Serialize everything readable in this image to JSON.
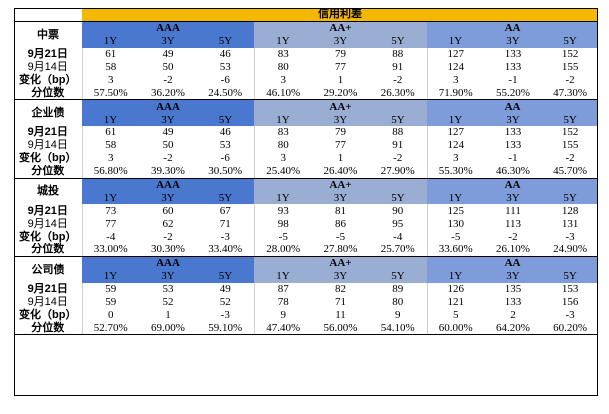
{
  "title": "信用利差",
  "ratings": [
    "AAA",
    "AA+",
    "AA"
  ],
  "tenors": [
    "1Y",
    "3Y",
    "5Y"
  ],
  "blocks": [
    {
      "name": "中票",
      "rows": [
        {
          "label": "9月21日",
          "values": [
            "61",
            "49",
            "46",
            "83",
            "79",
            "88",
            "127",
            "133",
            "152"
          ]
        },
        {
          "label": "9月14日",
          "values": [
            "58",
            "50",
            "53",
            "80",
            "77",
            "91",
            "124",
            "133",
            "155"
          ]
        },
        {
          "label": "变化（bp）",
          "values": [
            "3",
            "-2",
            "-6",
            "3",
            "1",
            "-2",
            "3",
            "-1",
            "-2"
          ]
        },
        {
          "label": "分位数",
          "values": [
            "57.50%",
            "36.20%",
            "24.50%",
            "46.10%",
            "29.20%",
            "26.30%",
            "71.90%",
            "55.20%",
            "47.30%"
          ]
        }
      ]
    },
    {
      "name": "企业债",
      "rows": [
        {
          "label": "9月21日",
          "values": [
            "61",
            "49",
            "46",
            "83",
            "79",
            "88",
            "127",
            "133",
            "152"
          ]
        },
        {
          "label": "9月14日",
          "values": [
            "58",
            "50",
            "53",
            "80",
            "77",
            "91",
            "124",
            "133",
            "155"
          ]
        },
        {
          "label": "变化（bp）",
          "values": [
            "3",
            "-2",
            "-6",
            "3",
            "1",
            "-2",
            "3",
            "-1",
            "-2"
          ]
        },
        {
          "label": "分位数",
          "values": [
            "56.80%",
            "39.30%",
            "30.50%",
            "25.40%",
            "26.40%",
            "27.90%",
            "55.30%",
            "46.30%",
            "45.70%"
          ]
        }
      ]
    },
    {
      "name": "城投",
      "rows": [
        {
          "label": "9月21日",
          "values": [
            "73",
            "60",
            "67",
            "93",
            "81",
            "90",
            "125",
            "111",
            "128"
          ]
        },
        {
          "label": "9月14日",
          "values": [
            "77",
            "62",
            "71",
            "98",
            "86",
            "95",
            "130",
            "113",
            "131"
          ]
        },
        {
          "label": "变化（bp）",
          "values": [
            "-4",
            "-2",
            "-3",
            "-5",
            "-5",
            "-4",
            "-5",
            "-2",
            "-3"
          ]
        },
        {
          "label": "分位数",
          "values": [
            "33.00%",
            "30.30%",
            "33.40%",
            "28.00%",
            "27.80%",
            "25.70%",
            "33.60%",
            "26.10%",
            "24.90%"
          ]
        }
      ]
    },
    {
      "name": "公司债",
      "rows": [
        {
          "label": "9月21日",
          "values": [
            "59",
            "53",
            "49",
            "87",
            "82",
            "89",
            "126",
            "135",
            "153"
          ]
        },
        {
          "label": "9月14日",
          "values": [
            "59",
            "52",
            "52",
            "78",
            "71",
            "80",
            "121",
            "133",
            "156"
          ]
        },
        {
          "label": "变化（bp）",
          "values": [
            "0",
            "1",
            "-3",
            "9",
            "11",
            "9",
            "5",
            "2",
            "-3"
          ]
        },
        {
          "label": "分位数",
          "values": [
            "52.70%",
            "69.00%",
            "59.10%",
            "47.40%",
            "56.00%",
            "54.10%",
            "60.00%",
            "64.20%",
            "60.20%"
          ]
        }
      ]
    }
  ]
}
